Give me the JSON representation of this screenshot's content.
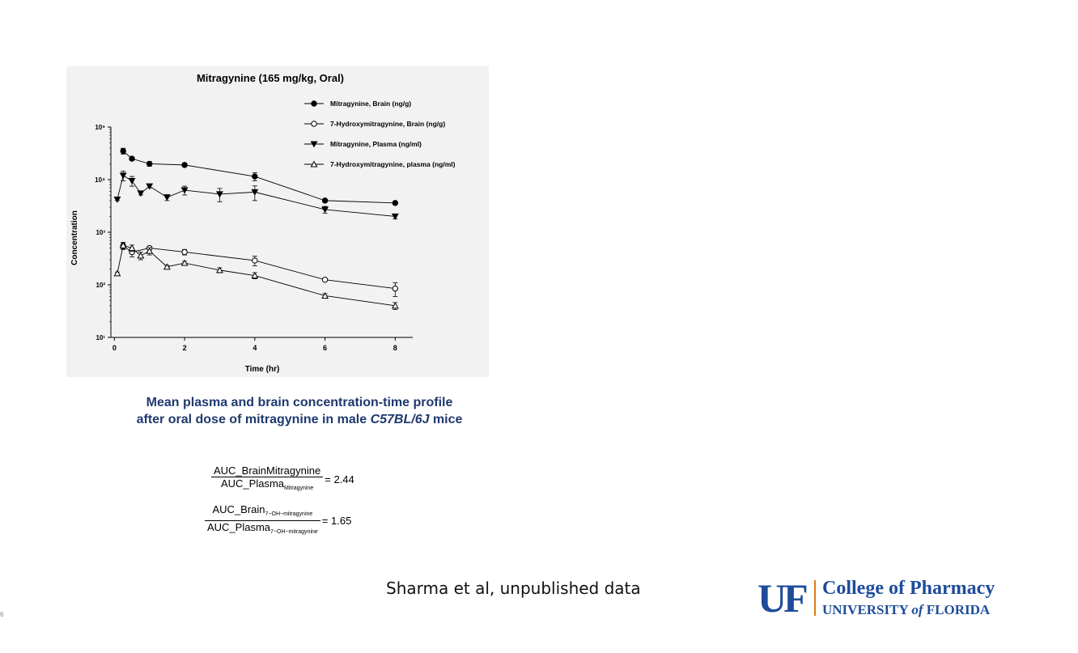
{
  "slide": {
    "number": "6",
    "caption_line1": "Mean plasma and brain concentration-time profile",
    "caption_line2_prefix": "after oral dose of mitragynine in male ",
    "caption_line2_strain": "C57BL/6J",
    "caption_line2_suffix": " mice",
    "citation": "Sharma et al, unpublished data"
  },
  "ratios": [
    {
      "numerator": "AUC_BrainMitragynine",
      "numerator_sub": "",
      "denominator": "AUC_Plasma",
      "denominator_sub": "Mitragynine",
      "value": "= 2.44"
    },
    {
      "numerator": "AUC_Brain",
      "numerator_sub": "7−OH−mitragynine",
      "denominator": "AUC_Plasma",
      "denominator_sub": "7−OH−mitragynine",
      "value": "= 1.65"
    }
  ],
  "logo": {
    "mark": "UF",
    "line1": "College of Pharmacy",
    "line2_a": "UNIVERSITY ",
    "line2_of": "of",
    "line2_b": " FLORIDA",
    "accent_color": "#e07a1f",
    "brand_color": "#1e4c9a"
  },
  "chart_data": {
    "type": "line",
    "title": "Mitragynine (165 mg/kg, Oral)",
    "xlabel": "Time (hr)",
    "ylabel": "Concentration",
    "y_scale": "log",
    "xlim": [
      -0.1,
      8.5
    ],
    "ylim": [
      10,
      100000
    ],
    "x_ticks": [
      0,
      2,
      4,
      6,
      8
    ],
    "x_tick_labels": [
      "0",
      "2",
      "4",
      "6",
      "8"
    ],
    "y_ticks": [
      10,
      100,
      1000,
      10000,
      100000
    ],
    "y_tick_labels": [
      "10¹",
      "10²",
      "10³",
      "10⁴",
      "10⁵"
    ],
    "legend_position": "top-right",
    "grid": false,
    "series": [
      {
        "name": "Mitragynine, Brain (ng/g)",
        "marker": "circle",
        "fill": "filled",
        "x": [
          0.25,
          0.5,
          1,
          2,
          4,
          6,
          8
        ],
        "y": [
          35000,
          25000,
          20000,
          19000,
          11500,
          4000,
          3600
        ],
        "err": [
          4500,
          1500,
          2000,
          1500,
          2000,
          200,
          200
        ]
      },
      {
        "name": "7-Hydroxymitragynine, Brain (ng/g)",
        "marker": "circle",
        "fill": "open",
        "x": [
          0.25,
          0.5,
          1,
          2,
          4,
          6,
          8
        ],
        "y": [
          550,
          420,
          500,
          420,
          290,
          125,
          85
        ],
        "err": [
          80,
          80,
          40,
          50,
          60,
          8,
          25
        ]
      },
      {
        "name": "Mitragynine, Plasma (ng/ml)",
        "marker": "triangle-down",
        "fill": "filled",
        "x": [
          0.083,
          0.25,
          0.5,
          0.75,
          1,
          1.5,
          2,
          3,
          4,
          6,
          8
        ],
        "y": [
          4200,
          12000,
          9500,
          5500,
          7500,
          4600,
          6300,
          5300,
          5800,
          2700,
          2000
        ],
        "err": [
          200,
          2500,
          2000,
          400,
          500,
          600,
          1200,
          1500,
          1800,
          400,
          200
        ]
      },
      {
        "name": "7-Hydroxymitragynine, plasma (ng/ml)",
        "marker": "triangle-up",
        "fill": "open",
        "x": [
          0.083,
          0.25,
          0.5,
          0.75,
          1,
          1.5,
          2,
          3,
          4,
          6,
          8
        ],
        "y": [
          165,
          560,
          500,
          360,
          440,
          220,
          260,
          190,
          150,
          62,
          40
        ],
        "err": [
          10,
          80,
          70,
          60,
          70,
          15,
          20,
          20,
          20,
          6,
          6
        ]
      }
    ]
  }
}
